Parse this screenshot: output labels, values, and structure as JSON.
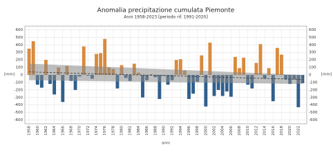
{
  "chart_data": {
    "type": "bar",
    "title": "Anomalia precipitazione cumulata Piemonte",
    "subtitle": "Anni 1958-2023  [periodo rif. 1991-2020]",
    "x_label": "anni",
    "y_label": "[mm]",
    "y2_label": "[mm]",
    "x": [
      1958,
      1959,
      1960,
      1961,
      1962,
      1963,
      1964,
      1965,
      1966,
      1967,
      1968,
      1969,
      1970,
      1971,
      1972,
      1973,
      1974,
      1975,
      1976,
      1977,
      1978,
      1979,
      1980,
      1981,
      1982,
      1983,
      1984,
      1985,
      1986,
      1987,
      1988,
      1989,
      1990,
      1991,
      1992,
      1993,
      1994,
      1995,
      1996,
      1997,
      1998,
      1999,
      2000,
      2001,
      2002,
      2003,
      2004,
      2005,
      2006,
      2007,
      2008,
      2009,
      2010,
      2011,
      2012,
      2013,
      2014,
      2015,
      2016,
      2017,
      2018,
      2019,
      2020,
      2021,
      2022,
      2023
    ],
    "values": [
      350,
      450,
      -130,
      -170,
      200,
      -120,
      -260,
      100,
      -360,
      120,
      -80,
      -200,
      -20,
      380,
      -10,
      -50,
      280,
      290,
      480,
      100,
      80,
      -180,
      130,
      -40,
      -80,
      150,
      30,
      -300,
      -70,
      10,
      -30,
      -320,
      -10,
      -130,
      -70,
      200,
      210,
      60,
      -320,
      -250,
      -90,
      260,
      -420,
      430,
      -280,
      -200,
      -280,
      -220,
      -290,
      240,
      90,
      230,
      -130,
      -180,
      160,
      410,
      -50,
      90,
      -350,
      360,
      270,
      -60,
      -120,
      -60,
      -430,
      -110
    ],
    "colors": {
      "positive": "#d98a3d",
      "negative": "#2f5f8c"
    },
    "trend": {
      "x": [
        1958,
        2023
      ],
      "values": [
        40,
        -60
      ]
    },
    "band": {
      "x": [
        1958,
        2023
      ],
      "upper": [
        150,
        0
      ],
      "lower": [
        -70,
        -120
      ]
    },
    "xlim": [
      1957,
      2024
    ],
    "xticks": [
      1958,
      1960,
      1962,
      1964,
      1966,
      1968,
      1970,
      1972,
      1974,
      1976,
      1978,
      1980,
      1982,
      1984,
      1986,
      1988,
      1990,
      1992,
      1994,
      1996,
      1998,
      2000,
      2002,
      2004,
      2006,
      2008,
      2010,
      2012,
      2014,
      2016,
      2018,
      2020,
      2022
    ],
    "ylim": [
      -650,
      650
    ],
    "yticks": [
      -600,
      -500,
      -400,
      -300,
      -200,
      -100,
      0,
      100,
      200,
      300,
      400,
      500,
      600
    ],
    "grid": true
  }
}
